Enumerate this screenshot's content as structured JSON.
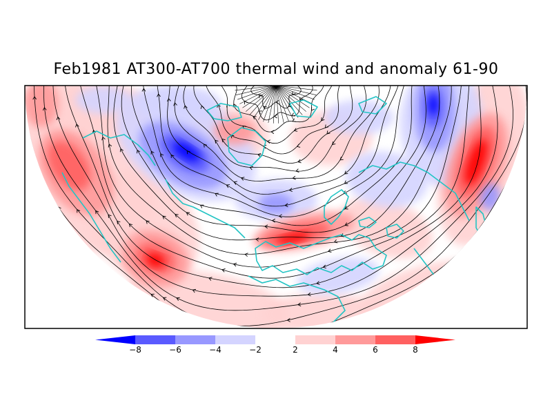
{
  "title": "Feb1981 AT300-AT700 thermal wind and anomaly 61-90",
  "colorbar": {
    "tick_labels": [
      "-8",
      "-6",
      "-4",
      "-2",
      "2",
      "4",
      "6",
      "8"
    ],
    "colors": [
      "#0000ff",
      "#5a5aff",
      "#9898ff",
      "#d4d4ff",
      "#ffffff",
      "#ffd2d2",
      "#ff9a9a",
      "#ff6060",
      "#ff0000"
    ]
  },
  "map": {
    "projection": "north polar stereographic half-disk",
    "coastline_color": "#22c4c4",
    "streamline_color": "#000000",
    "anomaly_features": [
      {
        "sign": "negative",
        "value": -8,
        "region": "eastern Canada / Hudson Bay"
      },
      {
        "sign": "negative",
        "value": -8,
        "region": "eastern Siberia"
      },
      {
        "sign": "negative",
        "value": -4,
        "region": "north Atlantic"
      },
      {
        "sign": "positive",
        "value": 8,
        "region": "Mediterranean"
      },
      {
        "sign": "positive",
        "value": 8,
        "region": "western Pacific"
      },
      {
        "sign": "positive",
        "value": 8,
        "region": "eastern Pacific"
      },
      {
        "sign": "positive",
        "value": 4,
        "region": "Alaska"
      }
    ]
  }
}
